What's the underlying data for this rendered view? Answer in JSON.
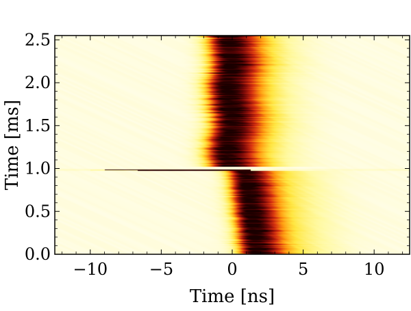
{
  "chart_data": {
    "type": "heatmap",
    "title": "",
    "xlabel": "Time [ns]",
    "ylabel": "Time [ms]",
    "xlim": [
      -12.5,
      12.5
    ],
    "ylim": [
      0.0,
      2.55
    ],
    "x_ticks": [
      -10,
      -5,
      0,
      5,
      10
    ],
    "x_tick_labels": [
      "−10",
      "−5",
      "0",
      "5",
      "10"
    ],
    "y_ticks": [
      0.0,
      0.5,
      1.0,
      1.5,
      2.0,
      2.5
    ],
    "y_tick_labels": [
      "0.0",
      "0.5",
      "1.0",
      "1.5",
      "2.0",
      "2.5"
    ],
    "grid": false,
    "legend": "none",
    "colormap": [
      "#fffde6",
      "#fff9a0",
      "#ffe640",
      "#ff9a10",
      "#d83010",
      "#7a0808",
      "#1a0000"
    ],
    "background_color": "#fffde6",
    "features": [
      {
        "label": "pulse before switch",
        "t_ms": [
          0.0,
          0.97
        ],
        "center_ns": [
          1.6,
          0.8
        ],
        "width_ns": 0.9
      },
      {
        "label": "transient at switch",
        "t_ms": [
          0.97,
          1.02
        ],
        "center_ns": [
          -10.0,
          0.5
        ]
      },
      {
        "label": "pulse after switch",
        "t_ms": [
          1.03,
          2.55
        ],
        "center_ns": [
          -0.4,
          -0.4
        ],
        "width_ns": 1.3
      }
    ]
  }
}
